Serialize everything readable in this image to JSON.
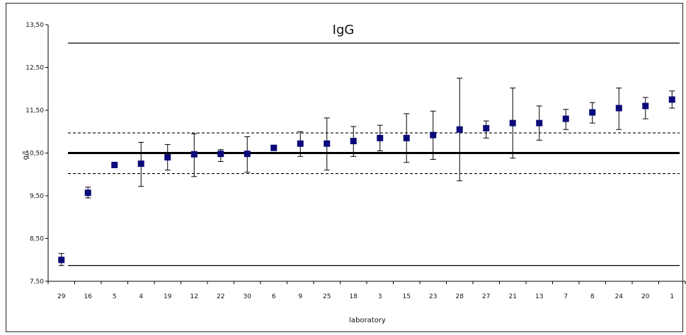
{
  "chart_data": {
    "type": "scatter",
    "title": "IgG",
    "xlabel": "laboratory",
    "ylabel": "g/l",
    "ylim": [
      7.5,
      13.5
    ],
    "yticks": [
      "7,50",
      "8,50",
      "9,50",
      "10,50",
      "11,50",
      "12,50",
      "13,50"
    ],
    "ytick_values": [
      7.5,
      8.5,
      9.5,
      10.5,
      11.5,
      12.5,
      13.5
    ],
    "categories": [
      "29",
      "16",
      "5",
      "4",
      "19",
      "12",
      "22",
      "30",
      "6",
      "9",
      "25",
      "18",
      "3",
      "15",
      "23",
      "28",
      "27",
      "21",
      "13",
      "7",
      "8",
      "24",
      "20",
      "1"
    ],
    "values": [
      8.0,
      9.57,
      10.22,
      10.25,
      10.4,
      10.47,
      10.48,
      10.48,
      10.62,
      10.72,
      10.72,
      10.78,
      10.85,
      10.85,
      10.92,
      11.05,
      11.08,
      11.2,
      11.2,
      11.3,
      11.45,
      11.55,
      11.6,
      11.75
    ],
    "error_low": [
      7.87,
      9.45,
      10.18,
      9.72,
      10.1,
      9.95,
      10.3,
      10.05,
      10.58,
      10.42,
      10.1,
      10.42,
      10.55,
      10.28,
      10.35,
      9.85,
      10.85,
      10.38,
      10.8,
      11.05,
      11.2,
      11.05,
      11.3,
      11.55
    ],
    "error_high": [
      8.15,
      9.7,
      10.26,
      10.75,
      10.7,
      10.95,
      10.58,
      10.88,
      10.66,
      11.0,
      11.32,
      11.12,
      11.15,
      11.42,
      11.48,
      12.25,
      11.25,
      12.02,
      11.6,
      11.52,
      11.68,
      12.02,
      11.8,
      11.95
    ],
    "reference_lines": {
      "target": 10.5,
      "inner_upper": 10.97,
      "inner_lower": 10.02,
      "outer_upper": 13.07,
      "outer_lower": 7.87
    },
    "colors": {
      "marker": "#0a0a7a",
      "line": "#000000"
    },
    "grid": false
  }
}
